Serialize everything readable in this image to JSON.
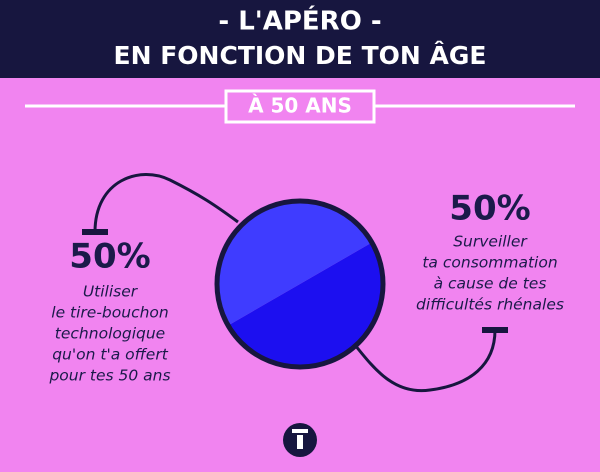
{
  "chart_data": {
    "type": "pie",
    "title": "- L'APÉRO -",
    "subtitle": "EN FONCTION DE TON ÂGE",
    "badge": "À 50 ANS",
    "categories": [
      [
        "Utiliser",
        "le tire-bouchon",
        "technologique",
        "qu'on t'a offert",
        "pour tes 50 ans"
      ],
      [
        "Surveiller",
        "ta consommation",
        "à cause de tes",
        "difficultés rhénales"
      ]
    ],
    "values": [
      50,
      50
    ],
    "value_labels": [
      "50%",
      "50%"
    ],
    "colors": [
      "#3f3cff",
      "#1c0ff0"
    ]
  }
}
